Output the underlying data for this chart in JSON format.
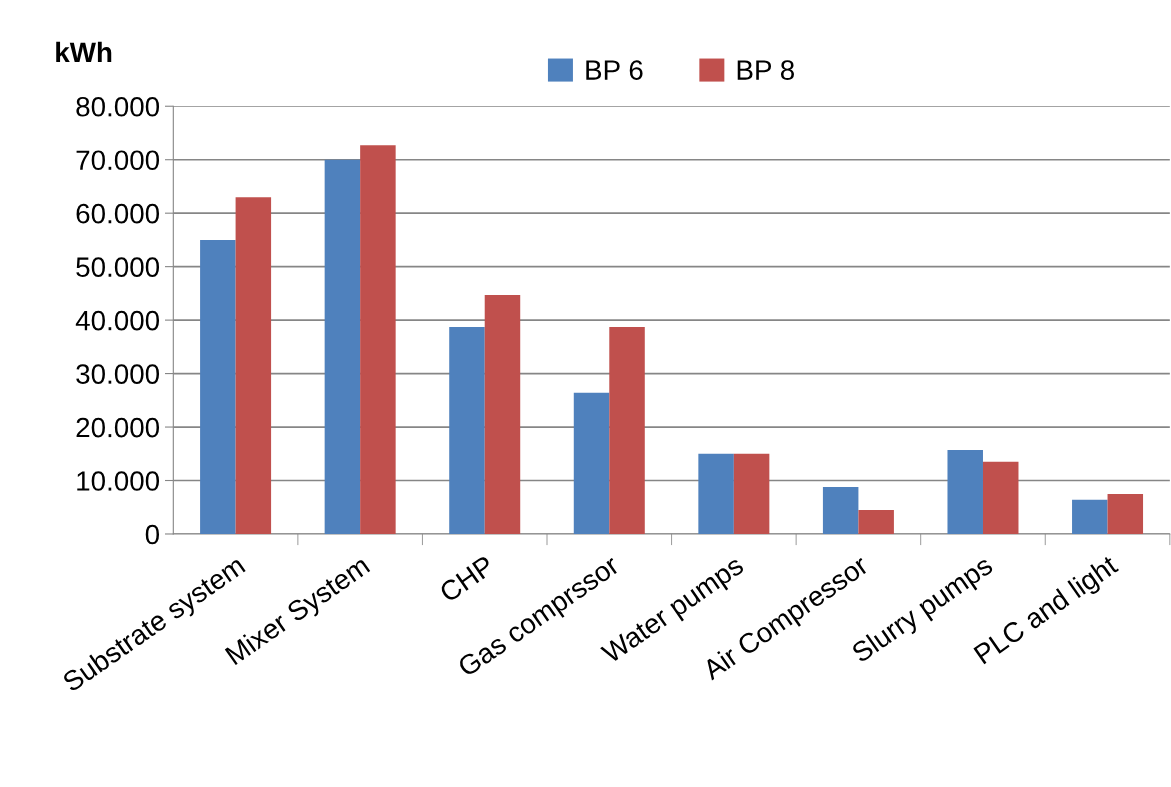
{
  "chart_data": {
    "type": "bar",
    "ylabel": "kWh",
    "categories": [
      "Substrate system",
      "Mixer System",
      "CHP",
      "Gas comprssor",
      "Water pumps",
      "Air Compressor",
      "Slurry pumps",
      "PLC and light"
    ],
    "series": [
      {
        "name": "BP 6",
        "color": "#4f81bd",
        "values": [
          55000,
          70000,
          38700,
          26400,
          15000,
          8800,
          15700,
          6400
        ]
      },
      {
        "name": "BP 8",
        "color": "#c0504d",
        "values": [
          63000,
          72700,
          44700,
          38700,
          15000,
          4500,
          13500,
          7500
        ]
      }
    ],
    "ylim": [
      0,
      80000
    ],
    "yticks": [
      {
        "value": 0,
        "label": "0"
      },
      {
        "value": 10000,
        "label": "10.000"
      },
      {
        "value": 20000,
        "label": "20.000"
      },
      {
        "value": 30000,
        "label": "30.000"
      },
      {
        "value": 40000,
        "label": "40.000"
      },
      {
        "value": 50000,
        "label": "50.000"
      },
      {
        "value": 60000,
        "label": "60.000"
      },
      {
        "value": 70000,
        "label": "70.000"
      },
      {
        "value": 80000,
        "label": "80.000"
      }
    ],
    "grid": "y",
    "legend": "top"
  }
}
